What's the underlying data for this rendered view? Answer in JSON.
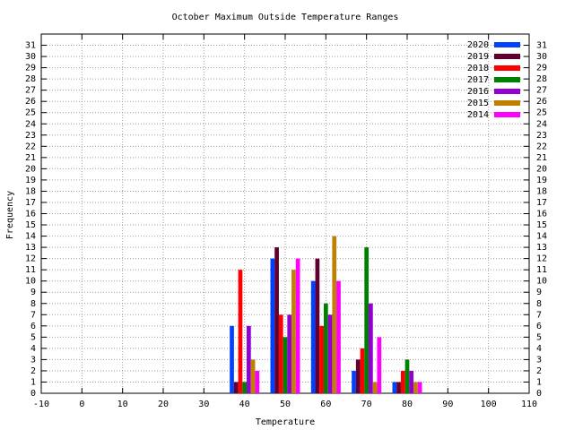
{
  "chart_data": {
    "type": "bar",
    "title": "October Maximum Outside Temperature Ranges",
    "xlabel": "Temperature",
    "ylabel": "Frequency",
    "x": [
      40,
      50,
      60,
      70,
      80
    ],
    "series": [
      {
        "name": "2020",
        "color": "#0040ff",
        "values": [
          6,
          12,
          10,
          2,
          1
        ]
      },
      {
        "name": "2019",
        "color": "#600030",
        "values": [
          1,
          13,
          12,
          3,
          1
        ]
      },
      {
        "name": "2018",
        "color": "#ff0000",
        "values": [
          11,
          7,
          6,
          4,
          2
        ]
      },
      {
        "name": "2017",
        "color": "#008000",
        "values": [
          1,
          5,
          8,
          13,
          3
        ]
      },
      {
        "name": "2016",
        "color": "#9400d3",
        "values": [
          6,
          7,
          7,
          8,
          2
        ]
      },
      {
        "name": "2015",
        "color": "#c08000",
        "values": [
          3,
          11,
          14,
          1,
          1
        ]
      },
      {
        "name": "2014",
        "color": "#ff00ff",
        "values": [
          2,
          12,
          10,
          5,
          1
        ]
      }
    ],
    "xlim": [
      -10,
      110
    ],
    "xticks": [
      -10,
      0,
      10,
      20,
      30,
      40,
      50,
      60,
      70,
      80,
      90,
      100,
      110
    ],
    "ylim": [
      0,
      32
    ],
    "yticks": [
      0,
      1,
      2,
      3,
      4,
      5,
      6,
      7,
      8,
      9,
      10,
      11,
      12,
      13,
      14,
      15,
      16,
      17,
      18,
      19,
      20,
      21,
      22,
      23,
      24,
      25,
      26,
      27,
      28,
      29,
      30,
      31
    ],
    "grid": true,
    "legend": "top-right"
  }
}
